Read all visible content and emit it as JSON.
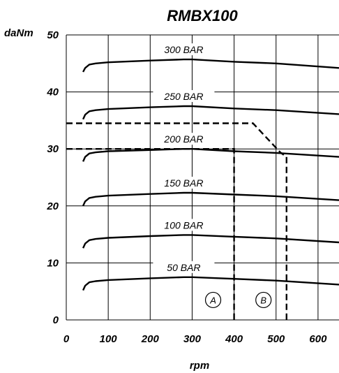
{
  "chart_data": {
    "type": "line",
    "title": "RMBX100",
    "xlabel": "rpm",
    "ylabel": "daNm",
    "xlim": [
      0,
      650
    ],
    "ylim": [
      0,
      50
    ],
    "xticks": [
      0,
      100,
      200,
      300,
      400,
      500,
      600
    ],
    "yticks": [
      0,
      10,
      20,
      30,
      40,
      50
    ],
    "grid": true,
    "legend": "none",
    "series": [
      {
        "name": "300 BAR",
        "x": [
          40,
          45,
          55,
          70,
          100,
          200,
          280,
          300,
          400,
          500,
          650
        ],
        "y": [
          43.5,
          44.2,
          44.8,
          45.0,
          45.2,
          45.5,
          45.7,
          45.7,
          45.3,
          45.0,
          44.2
        ]
      },
      {
        "name": "250 BAR",
        "x": [
          40,
          45,
          55,
          70,
          100,
          200,
          280,
          300,
          400,
          500,
          650
        ],
        "y": [
          35.2,
          36.0,
          36.6,
          36.8,
          37.0,
          37.3,
          37.5,
          37.5,
          37.1,
          36.8,
          36.1
        ]
      },
      {
        "name": "200 BAR",
        "x": [
          40,
          45,
          55,
          70,
          100,
          200,
          280,
          300,
          400,
          500,
          650
        ],
        "y": [
          27.8,
          28.6,
          29.2,
          29.4,
          29.6,
          29.8,
          30.0,
          30.0,
          29.6,
          29.3,
          28.6
        ]
      },
      {
        "name": "150 BAR",
        "x": [
          40,
          45,
          55,
          70,
          100,
          200,
          280,
          300,
          400,
          500,
          650
        ],
        "y": [
          20.0,
          20.8,
          21.4,
          21.6,
          21.8,
          22.1,
          22.3,
          22.3,
          22.0,
          21.7,
          21.0
        ]
      },
      {
        "name": "100 BAR",
        "x": [
          40,
          45,
          55,
          70,
          100,
          200,
          280,
          300,
          400,
          500,
          650
        ],
        "y": [
          12.6,
          13.4,
          14.0,
          14.2,
          14.4,
          14.7,
          14.9,
          14.9,
          14.6,
          14.3,
          13.6
        ]
      },
      {
        "name": "50 BAR",
        "x": [
          40,
          45,
          55,
          70,
          100,
          200,
          280,
          300,
          400,
          500,
          650
        ],
        "y": [
          5.2,
          6.0,
          6.6,
          6.8,
          7.0,
          7.3,
          7.5,
          7.5,
          7.2,
          6.9,
          6.2
        ]
      }
    ],
    "limits": [
      {
        "name": "A",
        "x": [
          0,
          400,
          400
        ],
        "y": [
          30,
          30,
          0
        ],
        "label_at": [
          350,
          3.5
        ]
      },
      {
        "name": "B",
        "x": [
          0,
          445,
          510,
          525,
          525
        ],
        "y": [
          34.5,
          34.5,
          29.4,
          28.6,
          0
        ],
        "label_at": [
          470,
          3.5
        ]
      }
    ]
  }
}
